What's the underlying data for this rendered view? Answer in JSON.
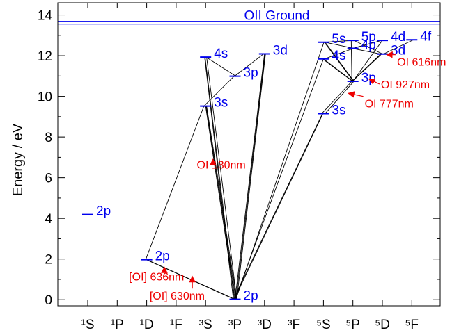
{
  "chart_data": {
    "type": "energy-level-diagram",
    "ylabel": "Energy / eV",
    "ylim": [
      -0.3,
      14.6
    ],
    "yticks": [
      0,
      2,
      4,
      6,
      8,
      10,
      12,
      14
    ],
    "columns": [
      "¹S",
      "¹P",
      "¹D",
      "¹F",
      "³S",
      "³P",
      "³D",
      "³F",
      "⁵S",
      "⁵P",
      "⁵D",
      "⁵F"
    ],
    "ground_line": {
      "label": "OII Ground",
      "energy": 13.62
    },
    "colors": {
      "levels": "#0000ee",
      "annotations": "#ee0000",
      "lines": "#000000",
      "axes": "#000000"
    },
    "levels": [
      {
        "id": "1S_2p",
        "col": 0,
        "energy": 4.19,
        "label": "2p"
      },
      {
        "id": "1D_2p",
        "col": 2,
        "energy": 1.97,
        "label": "2p"
      },
      {
        "id": "3S_3s",
        "col": 4,
        "energy": 9.52,
        "label": "3s"
      },
      {
        "id": "3S_4s",
        "col": 4,
        "energy": 11.93,
        "label": "4s"
      },
      {
        "id": "3P_2p",
        "col": 5,
        "energy": 0.02,
        "label": "2p"
      },
      {
        "id": "3P_3p",
        "col": 5,
        "energy": 10.99,
        "label": "3p"
      },
      {
        "id": "3D_3d",
        "col": 6,
        "energy": 12.09,
        "label": "3d"
      },
      {
        "id": "5S_3s",
        "col": 8,
        "energy": 9.15,
        "label": "3s"
      },
      {
        "id": "5S_4s",
        "col": 8,
        "energy": 11.84,
        "label": "4s"
      },
      {
        "id": "5S_5s",
        "col": 8,
        "energy": 12.66,
        "label": "5s"
      },
      {
        "id": "5P_3p",
        "col": 9,
        "energy": 10.74,
        "label": "3p"
      },
      {
        "id": "5P_4p",
        "col": 9,
        "energy": 12.36,
        "label": "4p"
      },
      {
        "id": "5P_5p",
        "col": 9,
        "energy": 12.75,
        "label": "5p"
      },
      {
        "id": "5D_3d",
        "col": 10,
        "energy": 12.08,
        "label": "3d"
      },
      {
        "id": "5D_4d",
        "col": 10,
        "energy": 12.75,
        "label": "4d"
      },
      {
        "id": "5F_4f",
        "col": 11,
        "energy": 12.78,
        "label": "4f"
      }
    ],
    "transitions": [
      [
        "1D_2p",
        "3S_3s"
      ],
      [
        "1D_2p",
        "3P_2p"
      ],
      [
        "1D_2p",
        "3P_2p"
      ],
      [
        "3S_4s",
        "3P_3p"
      ],
      [
        "3S_4s",
        "3P_2p"
      ],
      [
        "3S_4s",
        "3P_2p"
      ],
      [
        "3S_4s",
        "3P_2p"
      ],
      [
        "3S_3s",
        "3P_2p"
      ],
      [
        "3S_3s",
        "3P_2p"
      ],
      [
        "3S_3s",
        "3P_2p"
      ],
      [
        "3P_3p",
        "3S_3s"
      ],
      [
        "3P_3p",
        "3D_3d"
      ],
      [
        "3D_3d",
        "3P_2p"
      ],
      [
        "3D_3d",
        "3P_2p"
      ],
      [
        "3D_3d",
        "3P_2p"
      ],
      [
        "5S_3s",
        "3P_2p"
      ],
      [
        "5S_3s",
        "3P_2p"
      ],
      [
        "5S_4s",
        "3P_2p"
      ],
      [
        "5S_5s",
        "3P_2p"
      ],
      [
        "5P_3p",
        "5S_3s"
      ],
      [
        "5P_3p",
        "5S_3s"
      ],
      [
        "5P_3p",
        "5S_4s"
      ],
      [
        "5P_3p",
        "5S_4s"
      ],
      [
        "5P_3p",
        "5S_5s"
      ],
      [
        "5P_3p",
        "5S_5s"
      ],
      [
        "5P_3p",
        "5D_3d"
      ],
      [
        "5P_3p",
        "5D_3d"
      ],
      [
        "5P_3p",
        "5D_4d"
      ],
      [
        "5P_4p",
        "5S_4s"
      ],
      [
        "5P_4p",
        "5S_5s"
      ],
      [
        "5P_4p",
        "5D_3d"
      ],
      [
        "5P_4p",
        "5D_4d"
      ],
      [
        "5P_5p",
        "5S_5s"
      ],
      [
        "5D_3d",
        "5P_5p"
      ],
      [
        "5D_3d",
        "5F_4f"
      ],
      [
        "5P_3p",
        "5P_5p"
      ]
    ],
    "annotations": [
      {
        "text": "OI 130nm",
        "x": 3.7,
        "y": 6.45,
        "to": [
          4.25,
          6.9
        ]
      },
      {
        "text": "[OI] 636nm",
        "x": 1.4,
        "y": 0.95,
        "to": [
          2.6,
          1.6
        ]
      },
      {
        "text": "[OI] 630nm",
        "x": 2.1,
        "y": 0.0,
        "to": [
          3.55,
          1.14
        ]
      },
      {
        "text": "OI 777nm",
        "x": 9.4,
        "y": 9.45,
        "to": [
          8.85,
          10.15
        ]
      },
      {
        "text": "OI 927nm",
        "x": 9.95,
        "y": 10.4,
        "to": [
          9.55,
          10.85
        ]
      },
      {
        "text": "OI 616nm",
        "x": 10.5,
        "y": 11.5,
        "to": [
          10.15,
          12.05
        ]
      }
    ]
  }
}
